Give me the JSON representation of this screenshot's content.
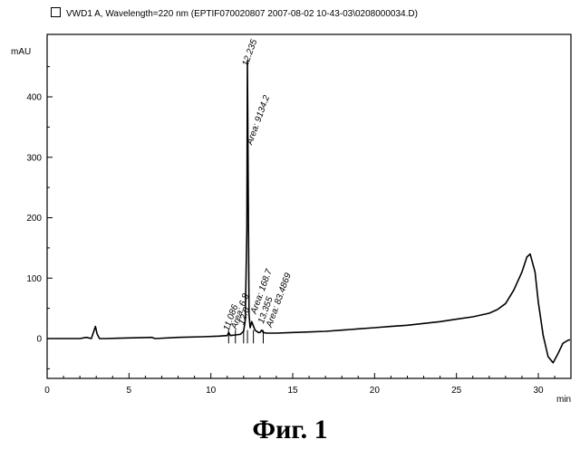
{
  "legend": {
    "title": "VWD1 A, Wavelength=220 nm (EPTIF070020807 2007-08-02 10-43-03\\0208000034.D)"
  },
  "caption": "Фиг.  1",
  "chart_data": {
    "type": "line",
    "ylabel": "mAU",
    "xlabel": "min",
    "xlim": [
      0,
      31
    ],
    "ylim": [
      -60,
      480
    ],
    "x_ticks": [
      0,
      5,
      10,
      15,
      20,
      25,
      30
    ],
    "y_ticks": [
      0,
      100,
      200,
      300,
      400
    ],
    "grid": false,
    "series": [
      {
        "x": [
          0,
          2.0,
          2.4,
          2.7,
          2.85,
          2.95,
          3.05,
          3.2,
          3.6,
          5,
          6.4,
          6.6,
          8,
          9.5,
          10.5,
          11.0,
          11.086,
          11.2,
          11.5,
          11.8,
          12.0,
          12.1,
          12.2,
          12.235,
          12.27,
          12.33,
          12.4,
          12.5,
          12.7,
          12.9,
          13.0,
          13.1,
          13.2,
          13.4,
          14,
          15,
          16,
          17,
          18,
          18.5,
          19,
          20,
          21,
          22,
          23,
          24,
          25,
          26,
          27,
          27.5,
          28,
          28.5,
          29.0,
          29.3,
          29.5,
          29.8,
          30.0,
          30.3,
          30.6,
          30.9,
          31.2,
          31.5,
          31.8,
          32.0
        ],
        "y": [
          0,
          0,
          2,
          0,
          12,
          20,
          8,
          0,
          0,
          1,
          2,
          0,
          2,
          3,
          4,
          5,
          10,
          5,
          6,
          7,
          12,
          30,
          180,
          460,
          300,
          40,
          18,
          28,
          14,
          10,
          10,
          14,
          10,
          9,
          9,
          10,
          11,
          12,
          14,
          15,
          16,
          18,
          20,
          22,
          25,
          28,
          32,
          36,
          42,
          48,
          58,
          80,
          110,
          135,
          140,
          110,
          60,
          5,
          -30,
          -40,
          -25,
          -8,
          -3,
          -2
        ]
      }
    ],
    "annotations": [
      {
        "x": 11.086,
        "y": 12,
        "text": "11.086"
      },
      {
        "x": 11.55,
        "y": 15,
        "text": "Area: 6.8"
      },
      {
        "x": 12.0,
        "y": 22,
        "text": "12.0"
      },
      {
        "x": 12.235,
        "y": 450,
        "text": "12.235"
      },
      {
        "x": 12.5,
        "y": 320,
        "text": "Area: 9134.2"
      },
      {
        "x": 12.75,
        "y": 40,
        "text": "Area: 168.7"
      },
      {
        "x": 13.2,
        "y": 24,
        "text": "13.355"
      },
      {
        "x": 13.7,
        "y": 18,
        "text": "Area: 83.4869"
      }
    ]
  }
}
